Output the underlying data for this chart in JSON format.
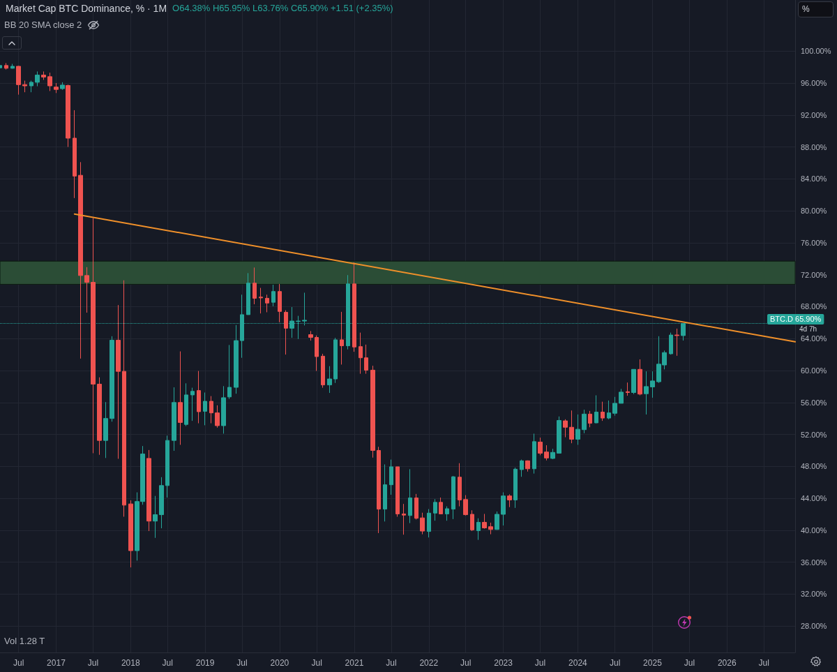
{
  "chart_data": {
    "type": "candlestick",
    "title": "Market Cap BTC Dominance, % · 1M",
    "annotations": [
      "O64.38% H65.95% L63.76% C65.90% +1.51 (+2.35%)",
      "BB 20 SMA close 2",
      "Vol 1.28 T",
      "%",
      "4d 7h"
    ],
    "x": [
      "2016-04",
      "2016-05",
      "2016-06",
      "2016-07",
      "2016-08",
      "2016-09",
      "2016-10",
      "2016-11",
      "2016-12",
      "2017-01",
      "2017-02",
      "2017-03",
      "2017-04",
      "2017-05",
      "2017-06",
      "2017-07",
      "2017-08",
      "2017-09",
      "2017-10",
      "2017-11",
      "2017-12",
      "2018-01",
      "2018-02",
      "2018-03",
      "2018-04",
      "2018-05",
      "2018-06",
      "2018-07",
      "2018-08",
      "2018-09",
      "2018-10",
      "2018-11",
      "2018-12",
      "2019-01",
      "2019-02",
      "2019-03",
      "2019-04",
      "2019-05",
      "2019-06",
      "2019-07",
      "2019-08",
      "2019-09",
      "2019-10",
      "2019-11",
      "2019-12",
      "2020-01",
      "2020-02",
      "2020-03",
      "2020-04",
      "2020-05",
      "2020-06",
      "2020-07",
      "2020-08",
      "2020-09",
      "2020-10",
      "2020-11",
      "2020-12",
      "2021-01",
      "2021-02",
      "2021-03",
      "2021-04",
      "2021-05",
      "2021-06",
      "2021-07",
      "2021-08",
      "2021-09",
      "2021-10",
      "2021-11",
      "2021-12",
      "2022-01",
      "2022-02",
      "2022-03",
      "2022-04",
      "2022-05",
      "2022-06",
      "2022-07",
      "2022-08",
      "2022-09",
      "2022-10",
      "2022-11",
      "2022-12",
      "2023-01",
      "2023-02",
      "2023-03",
      "2023-04",
      "2023-05",
      "2023-06",
      "2023-07",
      "2023-08",
      "2023-09",
      "2023-10",
      "2023-11",
      "2023-12",
      "2024-01",
      "2024-02",
      "2024-03",
      "2024-04",
      "2024-05",
      "2024-06",
      "2024-07",
      "2024-08",
      "2024-09",
      "2024-10",
      "2024-11",
      "2024-12",
      "2025-01",
      "2025-02",
      "2025-03",
      "2025-04",
      "2025-05",
      "2025-06"
    ],
    "ohlc": [
      [
        97.9,
        98.3,
        97.8,
        98.2
      ],
      [
        98.2,
        98.5,
        97.7,
        97.85
      ],
      [
        97.85,
        98.4,
        97.8,
        98.1
      ],
      [
        98.1,
        98.15,
        94.55,
        95.8
      ],
      [
        95.8,
        96.3,
        94.85,
        95.65
      ],
      [
        95.65,
        96.3,
        94.85,
        96.1
      ],
      [
        96.1,
        97.45,
        95.6,
        97.0
      ],
      [
        97.0,
        97.45,
        96.4,
        96.75
      ],
      [
        96.8,
        97.3,
        95.0,
        95.65
      ],
      [
        95.5,
        96.0,
        94.75,
        95.2
      ],
      [
        95.3,
        96.1,
        95.15,
        95.75
      ],
      [
        95.7,
        95.8,
        88.0,
        89.1
      ],
      [
        89.1,
        92.6,
        81.6,
        84.35
      ],
      [
        84.45,
        86.1,
        61.5,
        71.9
      ],
      [
        71.9,
        72.95,
        67.25,
        71.05
      ],
      [
        71.05,
        79.1,
        49.65,
        58.3
      ],
      [
        58.3,
        59.15,
        49.45,
        51.25
      ],
      [
        51.25,
        56.05,
        49.05,
        54.0
      ],
      [
        54.0,
        64.3,
        53.6,
        63.8
      ],
      [
        63.8,
        68.2,
        48.95,
        59.9
      ],
      [
        59.9,
        71.3,
        41.7,
        43.15
      ],
      [
        43.3,
        43.75,
        35.35,
        37.45
      ],
      [
        37.45,
        44.75,
        36.2,
        43.6
      ],
      [
        43.6,
        50.55,
        43.2,
        49.55
      ],
      [
        49.0,
        50.05,
        39.9,
        41.15
      ],
      [
        41.15,
        44.3,
        39.05,
        41.95
      ],
      [
        41.95,
        46.65,
        40.25,
        45.6
      ],
      [
        45.6,
        51.85,
        44.1,
        51.25
      ],
      [
        51.25,
        57.9,
        49.95,
        56.0
      ],
      [
        56.0,
        62.4,
        50.7,
        53.5
      ],
      [
        53.25,
        58.4,
        53.05,
        56.95
      ],
      [
        56.95,
        57.85,
        53.7,
        57.4
      ],
      [
        57.5,
        59.95,
        53.4,
        54.85
      ],
      [
        54.9,
        57.25,
        53.15,
        56.15
      ],
      [
        56.15,
        56.8,
        53.4,
        54.7
      ],
      [
        54.7,
        55.65,
        52.85,
        53.1
      ],
      [
        53.1,
        58.05,
        52.1,
        56.6
      ],
      [
        56.7,
        63.2,
        56.45,
        57.9
      ],
      [
        57.9,
        65.7,
        57.1,
        63.75
      ],
      [
        63.75,
        69.5,
        61.6,
        67.0
      ],
      [
        67.0,
        72.2,
        67.0,
        70.95
      ],
      [
        70.95,
        72.9,
        68.3,
        69.05
      ],
      [
        69.2,
        70.35,
        67.15,
        69.1
      ],
      [
        69.05,
        69.5,
        67.3,
        68.45
      ],
      [
        68.55,
        70.75,
        68.05,
        69.9
      ],
      [
        69.9,
        70.85,
        66.05,
        67.4
      ],
      [
        67.3,
        67.55,
        62.0,
        65.3
      ],
      [
        65.3,
        67.95,
        64.1,
        66.2
      ],
      [
        66.15,
        66.85,
        63.95,
        66.2
      ],
      [
        66.2,
        69.75,
        65.65,
        66.3
      ],
      [
        64.5,
        64.95,
        63.75,
        64.15
      ],
      [
        64.15,
        64.4,
        59.95,
        61.75
      ],
      [
        61.8,
        62.1,
        57.85,
        58.2
      ],
      [
        58.2,
        60.55,
        57.2,
        58.95
      ],
      [
        58.95,
        64.1,
        58.45,
        63.85
      ],
      [
        63.85,
        67.35,
        60.75,
        63.1
      ],
      [
        63.1,
        71.95,
        62.65,
        70.85
      ],
      [
        70.85,
        73.55,
        62.35,
        62.95
      ],
      [
        63.0,
        64.75,
        59.6,
        61.6
      ],
      [
        61.6,
        63.25,
        59.6,
        60.05
      ],
      [
        60.05,
        60.6,
        49.1,
        50.0
      ],
      [
        50.0,
        50.45,
        39.65,
        42.65
      ],
      [
        42.65,
        48.25,
        41.1,
        45.7
      ],
      [
        45.7,
        48.85,
        44.45,
        47.95
      ],
      [
        47.95,
        47.95,
        41.7,
        42.05
      ],
      [
        42.05,
        43.3,
        39.45,
        41.9
      ],
      [
        41.85,
        47.65,
        40.9,
        44.05
      ],
      [
        44.05,
        44.55,
        41.35,
        41.5
      ],
      [
        41.55,
        42.2,
        39.5,
        39.9
      ],
      [
        39.85,
        42.65,
        39.1,
        42.15
      ],
      [
        42.15,
        43.9,
        41.2,
        43.5
      ],
      [
        43.5,
        44.1,
        42.0,
        42.05
      ],
      [
        42.05,
        43.0,
        41.2,
        42.7
      ],
      [
        42.65,
        46.8,
        41.4,
        46.7
      ],
      [
        46.65,
        48.4,
        43.0,
        43.8
      ],
      [
        43.85,
        44.4,
        41.85,
        41.95
      ],
      [
        42.0,
        42.5,
        39.9,
        40.05
      ],
      [
        39.95,
        41.5,
        38.8,
        41.0
      ],
      [
        41.0,
        42.05,
        40.2,
        40.3
      ],
      [
        40.45,
        40.95,
        39.5,
        40.1
      ],
      [
        40.1,
        42.35,
        40.05,
        42.0
      ],
      [
        42.0,
        44.75,
        40.6,
        44.3
      ],
      [
        44.3,
        44.5,
        42.9,
        43.8
      ],
      [
        43.8,
        47.85,
        42.8,
        47.65
      ],
      [
        47.6,
        48.85,
        46.7,
        48.7
      ],
      [
        48.7,
        48.75,
        47.35,
        47.7
      ],
      [
        47.7,
        52.1,
        47.1,
        51.1
      ],
      [
        51.05,
        51.6,
        49.4,
        49.65
      ],
      [
        49.8,
        50.65,
        48.75,
        49.05
      ],
      [
        49.0,
        50.2,
        48.9,
        49.75
      ],
      [
        49.65,
        54.25,
        49.65,
        53.75
      ],
      [
        53.7,
        53.9,
        51.65,
        52.9
      ],
      [
        52.9,
        55.0,
        50.9,
        51.4
      ],
      [
        51.4,
        54.5,
        50.7,
        52.65
      ],
      [
        52.6,
        55.1,
        52.15,
        54.55
      ],
      [
        54.55,
        54.95,
        52.9,
        53.4
      ],
      [
        53.45,
        56.9,
        53.4,
        54.8
      ],
      [
        54.8,
        56.1,
        53.7,
        54.05
      ],
      [
        54.05,
        56.25,
        53.9,
        54.7
      ],
      [
        54.65,
        56.7,
        54.35,
        55.9
      ],
      [
        55.9,
        57.7,
        55.9,
        57.3
      ],
      [
        57.35,
        58.5,
        56.85,
        57.25
      ],
      [
        57.25,
        60.15,
        57.05,
        60.15
      ],
      [
        60.15,
        61.4,
        56.9,
        57.05
      ],
      [
        57.1,
        59.9,
        54.5,
        58.0
      ],
      [
        57.95,
        59.9,
        56.6,
        58.7
      ],
      [
        58.6,
        64.3,
        58.45,
        60.8
      ],
      [
        60.7,
        62.5,
        60.15,
        62.25
      ],
      [
        62.1,
        64.75,
        62.0,
        64.45
      ],
      [
        64.45,
        65.25,
        61.85,
        64.38
      ],
      [
        64.38,
        65.95,
        63.76,
        65.9
      ]
    ],
    "colors": [
      "#26a69a",
      "#ef5350",
      "#26a69a",
      "#ef5350",
      "#ef5350",
      "#26a69a",
      "#26a69a",
      "#ef5350",
      "#ef5350",
      "#ef5350",
      "#26a69a",
      "#ef5350",
      "#ef5350",
      "#ef5350",
      "#ef5350",
      "#ef5350",
      "#ef5350",
      "#26a69a",
      "#26a69a",
      "#ef5350",
      "#ef5350",
      "#ef5350",
      "#26a69a",
      "#26a69a",
      "#ef5350",
      "#26a69a",
      "#26a69a",
      "#26a69a",
      "#26a69a",
      "#ef5350",
      "#26a69a",
      "#26a69a",
      "#ef5350",
      "#26a69a",
      "#ef5350",
      "#ef5350",
      "#26a69a",
      "#26a69a",
      "#26a69a",
      "#26a69a",
      "#26a69a",
      "#ef5350",
      "#ef5350",
      "#ef5350",
      "#26a69a",
      "#ef5350",
      "#ef5350",
      "#26a69a",
      "#26a69a",
      "#26a69a",
      "#ef5350",
      "#ef5350",
      "#ef5350",
      "#26a69a",
      "#26a69a",
      "#ef5350",
      "#26a69a",
      "#ef5350",
      "#ef5350",
      "#ef5350",
      "#ef5350",
      "#ef5350",
      "#26a69a",
      "#26a69a",
      "#ef5350",
      "#ef5350",
      "#26a69a",
      "#ef5350",
      "#ef5350",
      "#26a69a",
      "#26a69a",
      "#ef5350",
      "#26a69a",
      "#26a69a",
      "#ef5350",
      "#ef5350",
      "#ef5350",
      "#26a69a",
      "#ef5350",
      "#ef5350",
      "#26a69a",
      "#26a69a",
      "#ef5350",
      "#26a69a",
      "#26a69a",
      "#ef5350",
      "#26a69a",
      "#ef5350",
      "#ef5350",
      "#26a69a",
      "#26a69a",
      "#ef5350",
      "#ef5350",
      "#26a69a",
      "#26a69a",
      "#ef5350",
      "#26a69a",
      "#ef5350",
      "#26a69a",
      "#26a69a",
      "#26a69a",
      "#ef5350",
      "#26a69a",
      "#ef5350",
      "#26a69a",
      "#26a69a",
      "#26a69a",
      "#26a69a",
      "#26a69a",
      "#ef5350",
      "#26a69a"
    ],
    "series": [
      {
        "type": "line",
        "x": [
          "2017-04",
          "2026-12"
        ],
        "values": [
          79.6,
          63.6
        ],
        "color": "#f0902a"
      }
    ],
    "xlim": [
      "2016-04",
      "2026-12"
    ],
    "xticks": [
      {
        "value": "2016-07",
        "label": "Jul"
      },
      "2017",
      {
        "value": "2017-07",
        "label": "Jul"
      },
      "2018",
      {
        "value": "2018-07",
        "label": "Jul"
      },
      "2019",
      {
        "value": "2019-07",
        "label": "Jul"
      },
      "2020",
      {
        "value": "2020-07",
        "label": "Jul"
      },
      "2021",
      {
        "value": "2021-07",
        "label": "Jul"
      },
      "2022",
      {
        "value": "2022-07",
        "label": "Jul"
      },
      "2023",
      {
        "value": "2023-07",
        "label": "Jul"
      },
      "2024",
      {
        "value": "2024-07",
        "label": "Jul"
      },
      "2025",
      {
        "value": "2025-07",
        "label": "Jul"
      },
      "2026",
      {
        "value": "2026-07",
        "label": "Jul"
      }
    ],
    "ylim": [
      24.7,
      106.4
    ],
    "yticks": [
      {
        "value": 28,
        "label": "28.00%"
      },
      {
        "value": 32,
        "label": "32.00%"
      },
      {
        "value": 36,
        "label": "36.00%"
      },
      {
        "value": 40,
        "label": "40.00%"
      },
      {
        "value": 44,
        "label": "44.00%"
      },
      {
        "value": 48,
        "label": "48.00%"
      },
      {
        "value": 52,
        "label": "52.00%"
      },
      {
        "value": 56,
        "label": "56.00%"
      },
      {
        "value": 60,
        "label": "60.00%"
      },
      {
        "value": 64,
        "label": "64.00%"
      },
      {
        "value": 68,
        "label": "68.00%"
      },
      {
        "value": 72,
        "label": "72.00%"
      },
      {
        "value": 76,
        "label": "76.00%"
      },
      {
        "value": 80,
        "label": "80.00%"
      },
      {
        "value": 84,
        "label": "84.00%"
      },
      {
        "value": 88,
        "label": "88.00%"
      },
      {
        "value": 92,
        "label": "92.00%"
      },
      {
        "value": 96,
        "label": "96.00%"
      },
      {
        "value": 100,
        "label": "100.00%"
      }
    ],
    "bands": [
      {
        "axis": "y",
        "from": 70.8,
        "to": 73.7,
        "color": "#2b4d36"
      }
    ],
    "ref_lines": [
      {
        "axis": "y",
        "value": 65.9,
        "label": "BTC.D 65.90%",
        "color": "#26a69a",
        "line_style": "dotted"
      }
    ],
    "grid": true
  }
}
